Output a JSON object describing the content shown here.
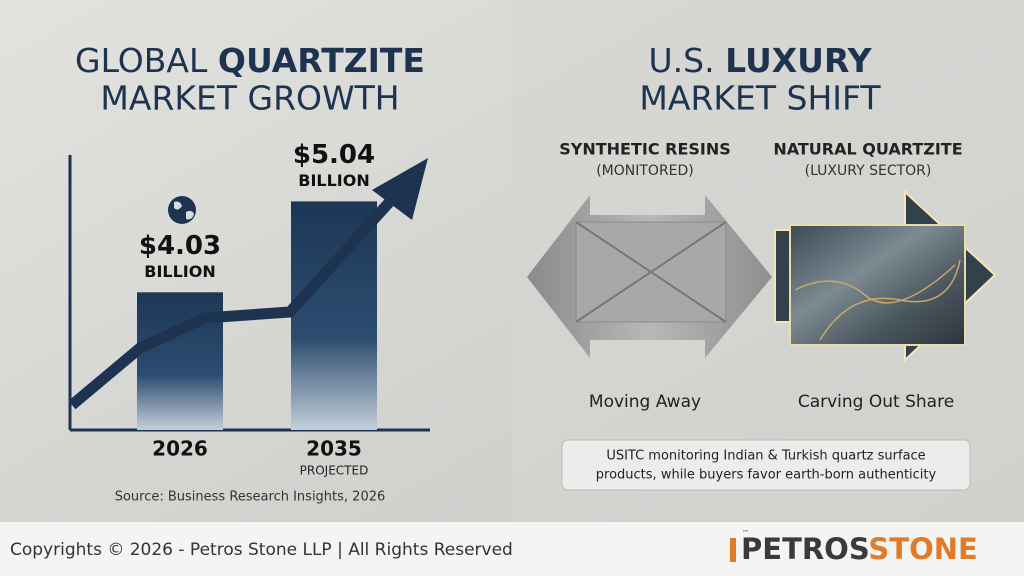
{
  "chart_data": {
    "type": "bar",
    "title": {
      "lead": "GLOBAL ",
      "emphasis": "QUARTZITE",
      "line2": "MARKET GROWTH"
    },
    "categories": [
      "2026",
      "2035"
    ],
    "category_notes": [
      null,
      "PROJECTED"
    ],
    "values": [
      4.03,
      5.04
    ],
    "value_labels": [
      "$4.03",
      "$5.04"
    ],
    "value_unit": "BILLION",
    "ylim": [
      2.5,
      5.5
    ],
    "source": "Source: Business Research Insights, 2026"
  },
  "shift_panel": {
    "title": {
      "lead": "U.S. ",
      "emphasis": "LUXURY",
      "line2": "MARKET SHIFT"
    },
    "columns": [
      {
        "heading": "SYNTHETIC RESINS",
        "subheading": "(MONITORED)",
        "caption": "Moving Away"
      },
      {
        "heading": "NATURAL QUARTZITE",
        "subheading": "(LUXURY SECTOR)",
        "caption": "Carving Out Share"
      }
    ],
    "note": [
      "USITC monitoring Indian & Turkish quartz surface",
      "products, while buyers favor earth-born authenticity"
    ]
  },
  "footer": {
    "copyright": "Copyrights © 2026 - Petros Stone LLP | All Rights Reserved",
    "logo": {
      "part1": "PETROS",
      "part2": "STONE",
      "mark": "™"
    }
  }
}
